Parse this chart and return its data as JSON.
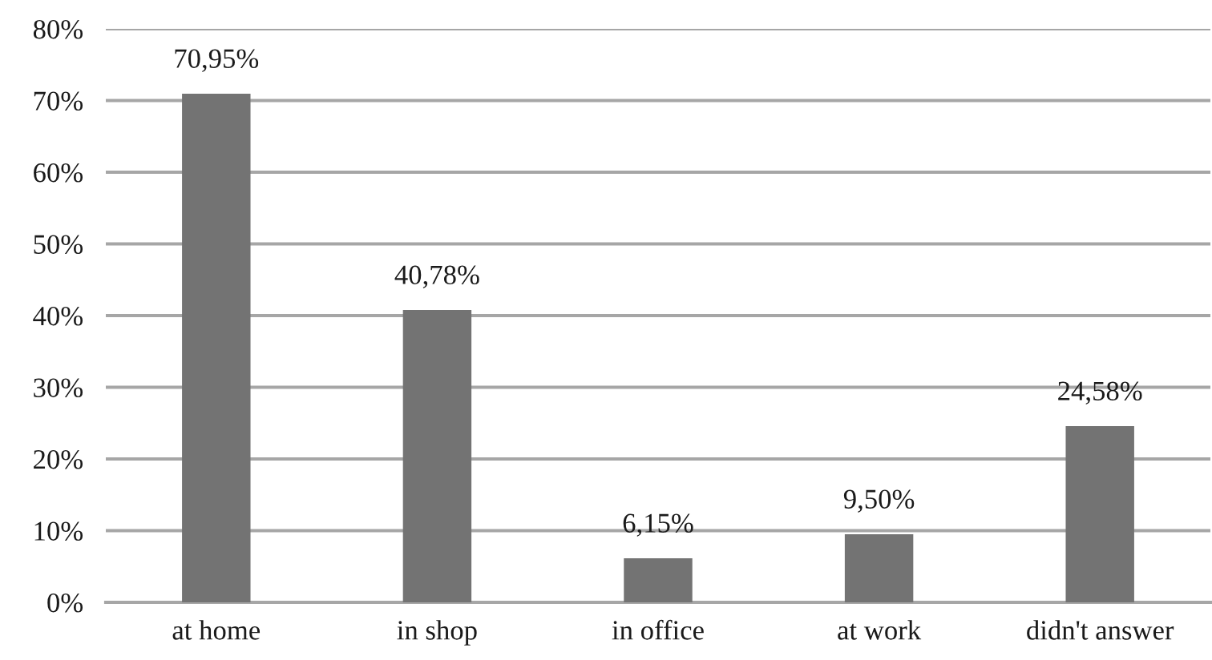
{
  "chart_data": {
    "type": "bar",
    "categories": [
      "at home",
      "in shop",
      "in office",
      "at work",
      "didn't answer"
    ],
    "values": [
      70.95,
      40.78,
      6.15,
      9.5,
      24.58
    ],
    "value_labels": [
      "70,95%",
      "40,78%",
      "6,15%",
      "9,50%",
      "24,58%"
    ],
    "color": "#737373",
    "ylim": [
      0,
      80
    ],
    "yticks": [
      {
        "value": 0,
        "label": "0%"
      },
      {
        "value": 10,
        "label": "10%"
      },
      {
        "value": 20,
        "label": "20%"
      },
      {
        "value": 30,
        "label": "30%"
      },
      {
        "value": 40,
        "label": "40%"
      },
      {
        "value": 50,
        "label": "50%"
      },
      {
        "value": 60,
        "label": "60%"
      },
      {
        "value": 70,
        "label": "70%"
      },
      {
        "value": 80,
        "label": "80%"
      }
    ],
    "grid": "y"
  }
}
